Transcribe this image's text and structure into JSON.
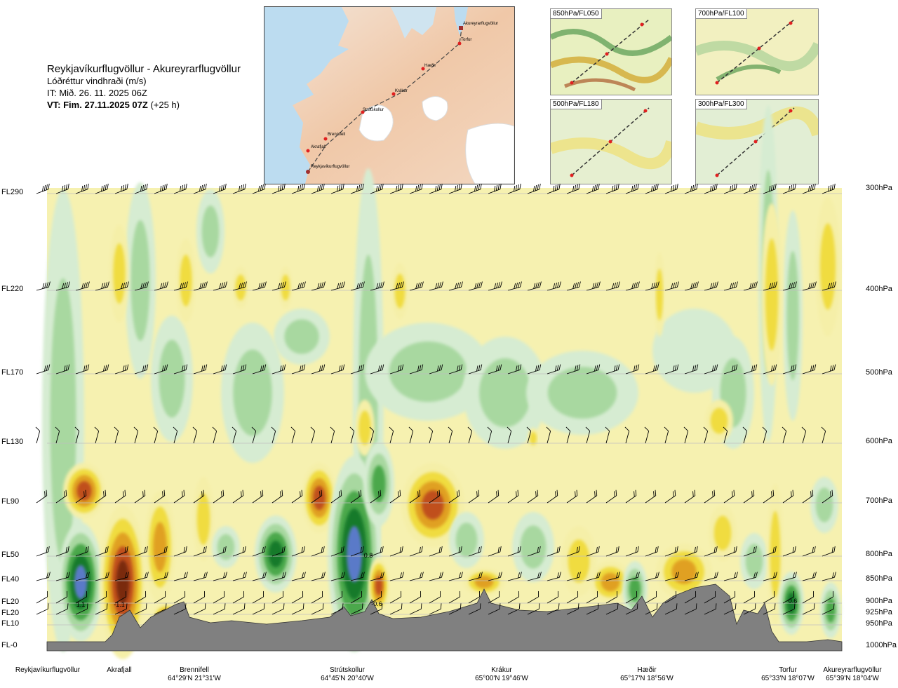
{
  "header": {
    "route": "Reykjavíkurflugvöllur - Akureyrarflugvöllur",
    "variable": "Lóðréttur vindhraði (m/s)",
    "issue_time": "IT: Mið. 26. 11. 2025 06Z",
    "valid_label": "VT: Fim. 27.11.2025 07Z",
    "valid_offset": "(+25 h)"
  },
  "route_map": {
    "waypoints": [
      "Akureyrarflugvöllur",
      "Torfur",
      "Hæðir",
      "Krákur",
      "Strútskollur",
      "Brennifell",
      "Akrafjall",
      "Reykjavíkurflugvöllur"
    ]
  },
  "thumbnails": [
    {
      "label": "850hPa/FL050"
    },
    {
      "label": "700hPa/FL100"
    },
    {
      "label": "500hPa/FL180"
    },
    {
      "label": "300hPa/FL300"
    }
  ],
  "left_levels": [
    "FL290",
    "FL220",
    "FL170",
    "FL130",
    "FL90",
    "FL50",
    "FL40",
    "FL20",
    "FL20",
    "FL10",
    "FL-0"
  ],
  "right_levels": [
    "300hPa",
    "400hPa",
    "500hPa",
    "600hPa",
    "700hPa",
    "800hPa",
    "850hPa",
    "900hPa",
    "925hPa",
    "950hPa",
    "1000hPa"
  ],
  "stations": [
    {
      "name": "Reykjavíkurflugvöllur",
      "coord": ""
    },
    {
      "name": "Akrafjall",
      "coord": ""
    },
    {
      "name": "Brennifell",
      "coord": "64°29'N 21°31'W"
    },
    {
      "name": "Strútskollur",
      "coord": "64°45'N 20°40'W"
    },
    {
      "name": "Krákur",
      "coord": "65°00'N 19°46'W"
    },
    {
      "name": "Hæðir",
      "coord": "65°17'N 18°56'W"
    },
    {
      "name": "Torfur",
      "coord": "65°33'N 18°07'W"
    },
    {
      "name": "Akureyrarflugvöllur",
      "coord": "65°39'N 18°04'W"
    }
  ],
  "chart_data": {
    "type": "heatmap",
    "title": "Reykjavíkurflugvöllur - Akureyrarflugvöllur",
    "subtitle": "Lóðréttur vindhraði (m/s)",
    "colors": {
      "strong_down": "#7a2a10",
      "down3": "#c0501a",
      "down2": "#e0a020",
      "down1": "#f0dc40",
      "weak_down": "#f5efa8",
      "neutral": "#fdfbe8",
      "weak_up": "#d6ecd2",
      "up1": "#a8d8a0",
      "up2": "#4ca84c",
      "up3": "#157a2a",
      "strong_up": "#5a7ac8",
      "terrain": "#808080"
    },
    "cell_labels": [
      {
        "station": "Reykjavíkurflugvöllur",
        "level": "FL20",
        "value": "1.1"
      },
      {
        "station": "Akrafjall",
        "level": "FL20",
        "value": "-1.1"
      },
      {
        "station": "Strútskollur",
        "level": "FL50",
        "value": "0.8"
      },
      {
        "station": "Strútskollur",
        "level": "FL20",
        "value": "-0.6"
      },
      {
        "station": "Torfur",
        "level": "FL20",
        "value": "0.6"
      }
    ]
  }
}
